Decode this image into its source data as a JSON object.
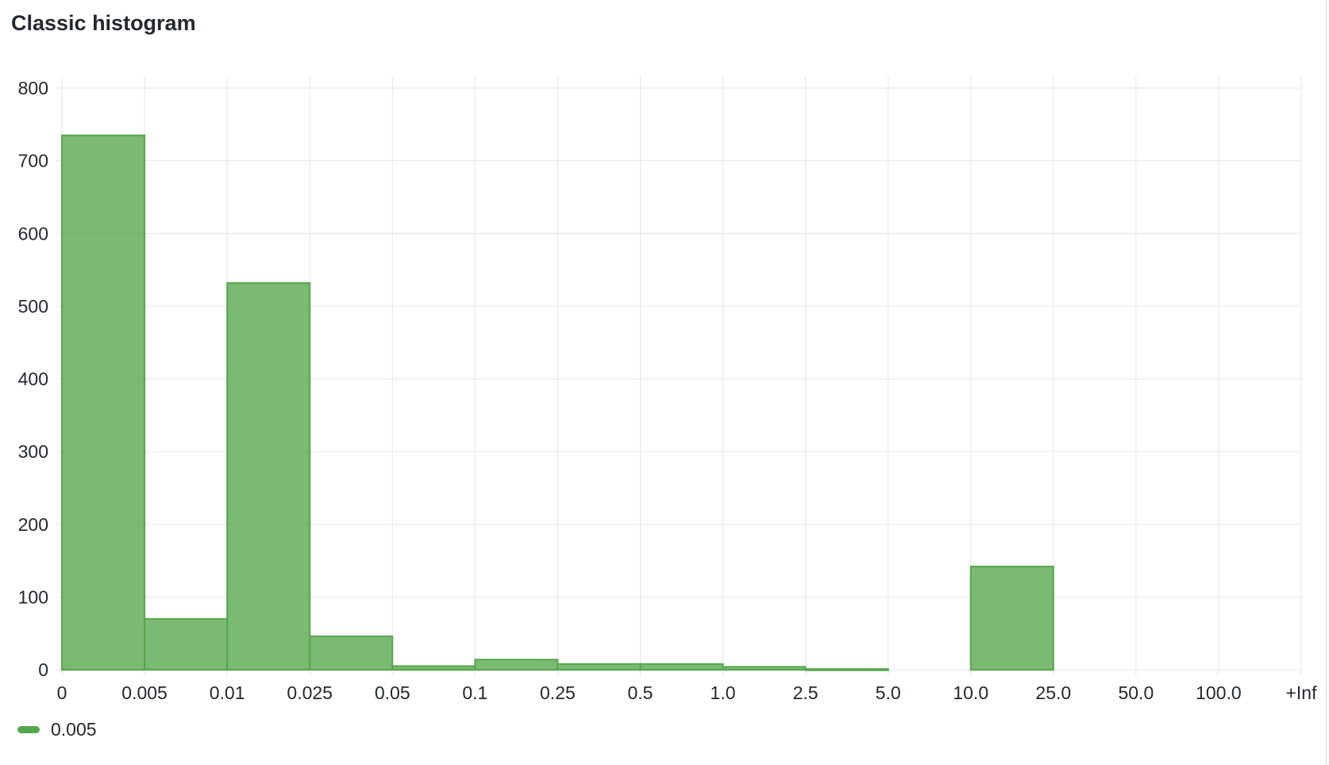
{
  "title": "Classic histogram",
  "chart_data": {
    "type": "bar",
    "title": "Classic histogram",
    "xlabel": "",
    "ylabel": "",
    "x_tick_labels": [
      "0",
      "0.005",
      "0.01",
      "0.025",
      "0.05",
      "0.1",
      "0.25",
      "0.5",
      "1.0",
      "2.5",
      "5.0",
      "10.0",
      "25.0",
      "50.0",
      "100.0",
      "+Inf"
    ],
    "y_tick_labels": [
      "0",
      "100",
      "200",
      "300",
      "400",
      "500",
      "600",
      "700",
      "800"
    ],
    "ylim": [
      0,
      800
    ],
    "grid": true,
    "legend_position": "bottom-left",
    "series": [
      {
        "name": "0.005",
        "color": "#56a64b",
        "buckets": [
          {
            "le_low": "0",
            "le_high": "0.005",
            "value": 735
          },
          {
            "le_low": "0.005",
            "le_high": "0.01",
            "value": 70
          },
          {
            "le_low": "0.01",
            "le_high": "0.025",
            "value": 532
          },
          {
            "le_low": "0.025",
            "le_high": "0.05",
            "value": 46
          },
          {
            "le_low": "0.05",
            "le_high": "0.1",
            "value": 5
          },
          {
            "le_low": "0.1",
            "le_high": "0.25",
            "value": 14
          },
          {
            "le_low": "0.25",
            "le_high": "0.5",
            "value": 8
          },
          {
            "le_low": "0.5",
            "le_high": "1.0",
            "value": 8
          },
          {
            "le_low": "1.0",
            "le_high": "2.5",
            "value": 4
          },
          {
            "le_low": "2.5",
            "le_high": "5.0",
            "value": 1
          },
          {
            "le_low": "5.0",
            "le_high": "10.0",
            "value": 0
          },
          {
            "le_low": "10.0",
            "le_high": "25.0",
            "value": 142
          },
          {
            "le_low": "25.0",
            "le_high": "50.0",
            "value": 0
          },
          {
            "le_low": "50.0",
            "le_high": "100.0",
            "value": 0
          },
          {
            "le_low": "100.0",
            "le_high": "+Inf",
            "value": 0
          }
        ]
      }
    ]
  }
}
